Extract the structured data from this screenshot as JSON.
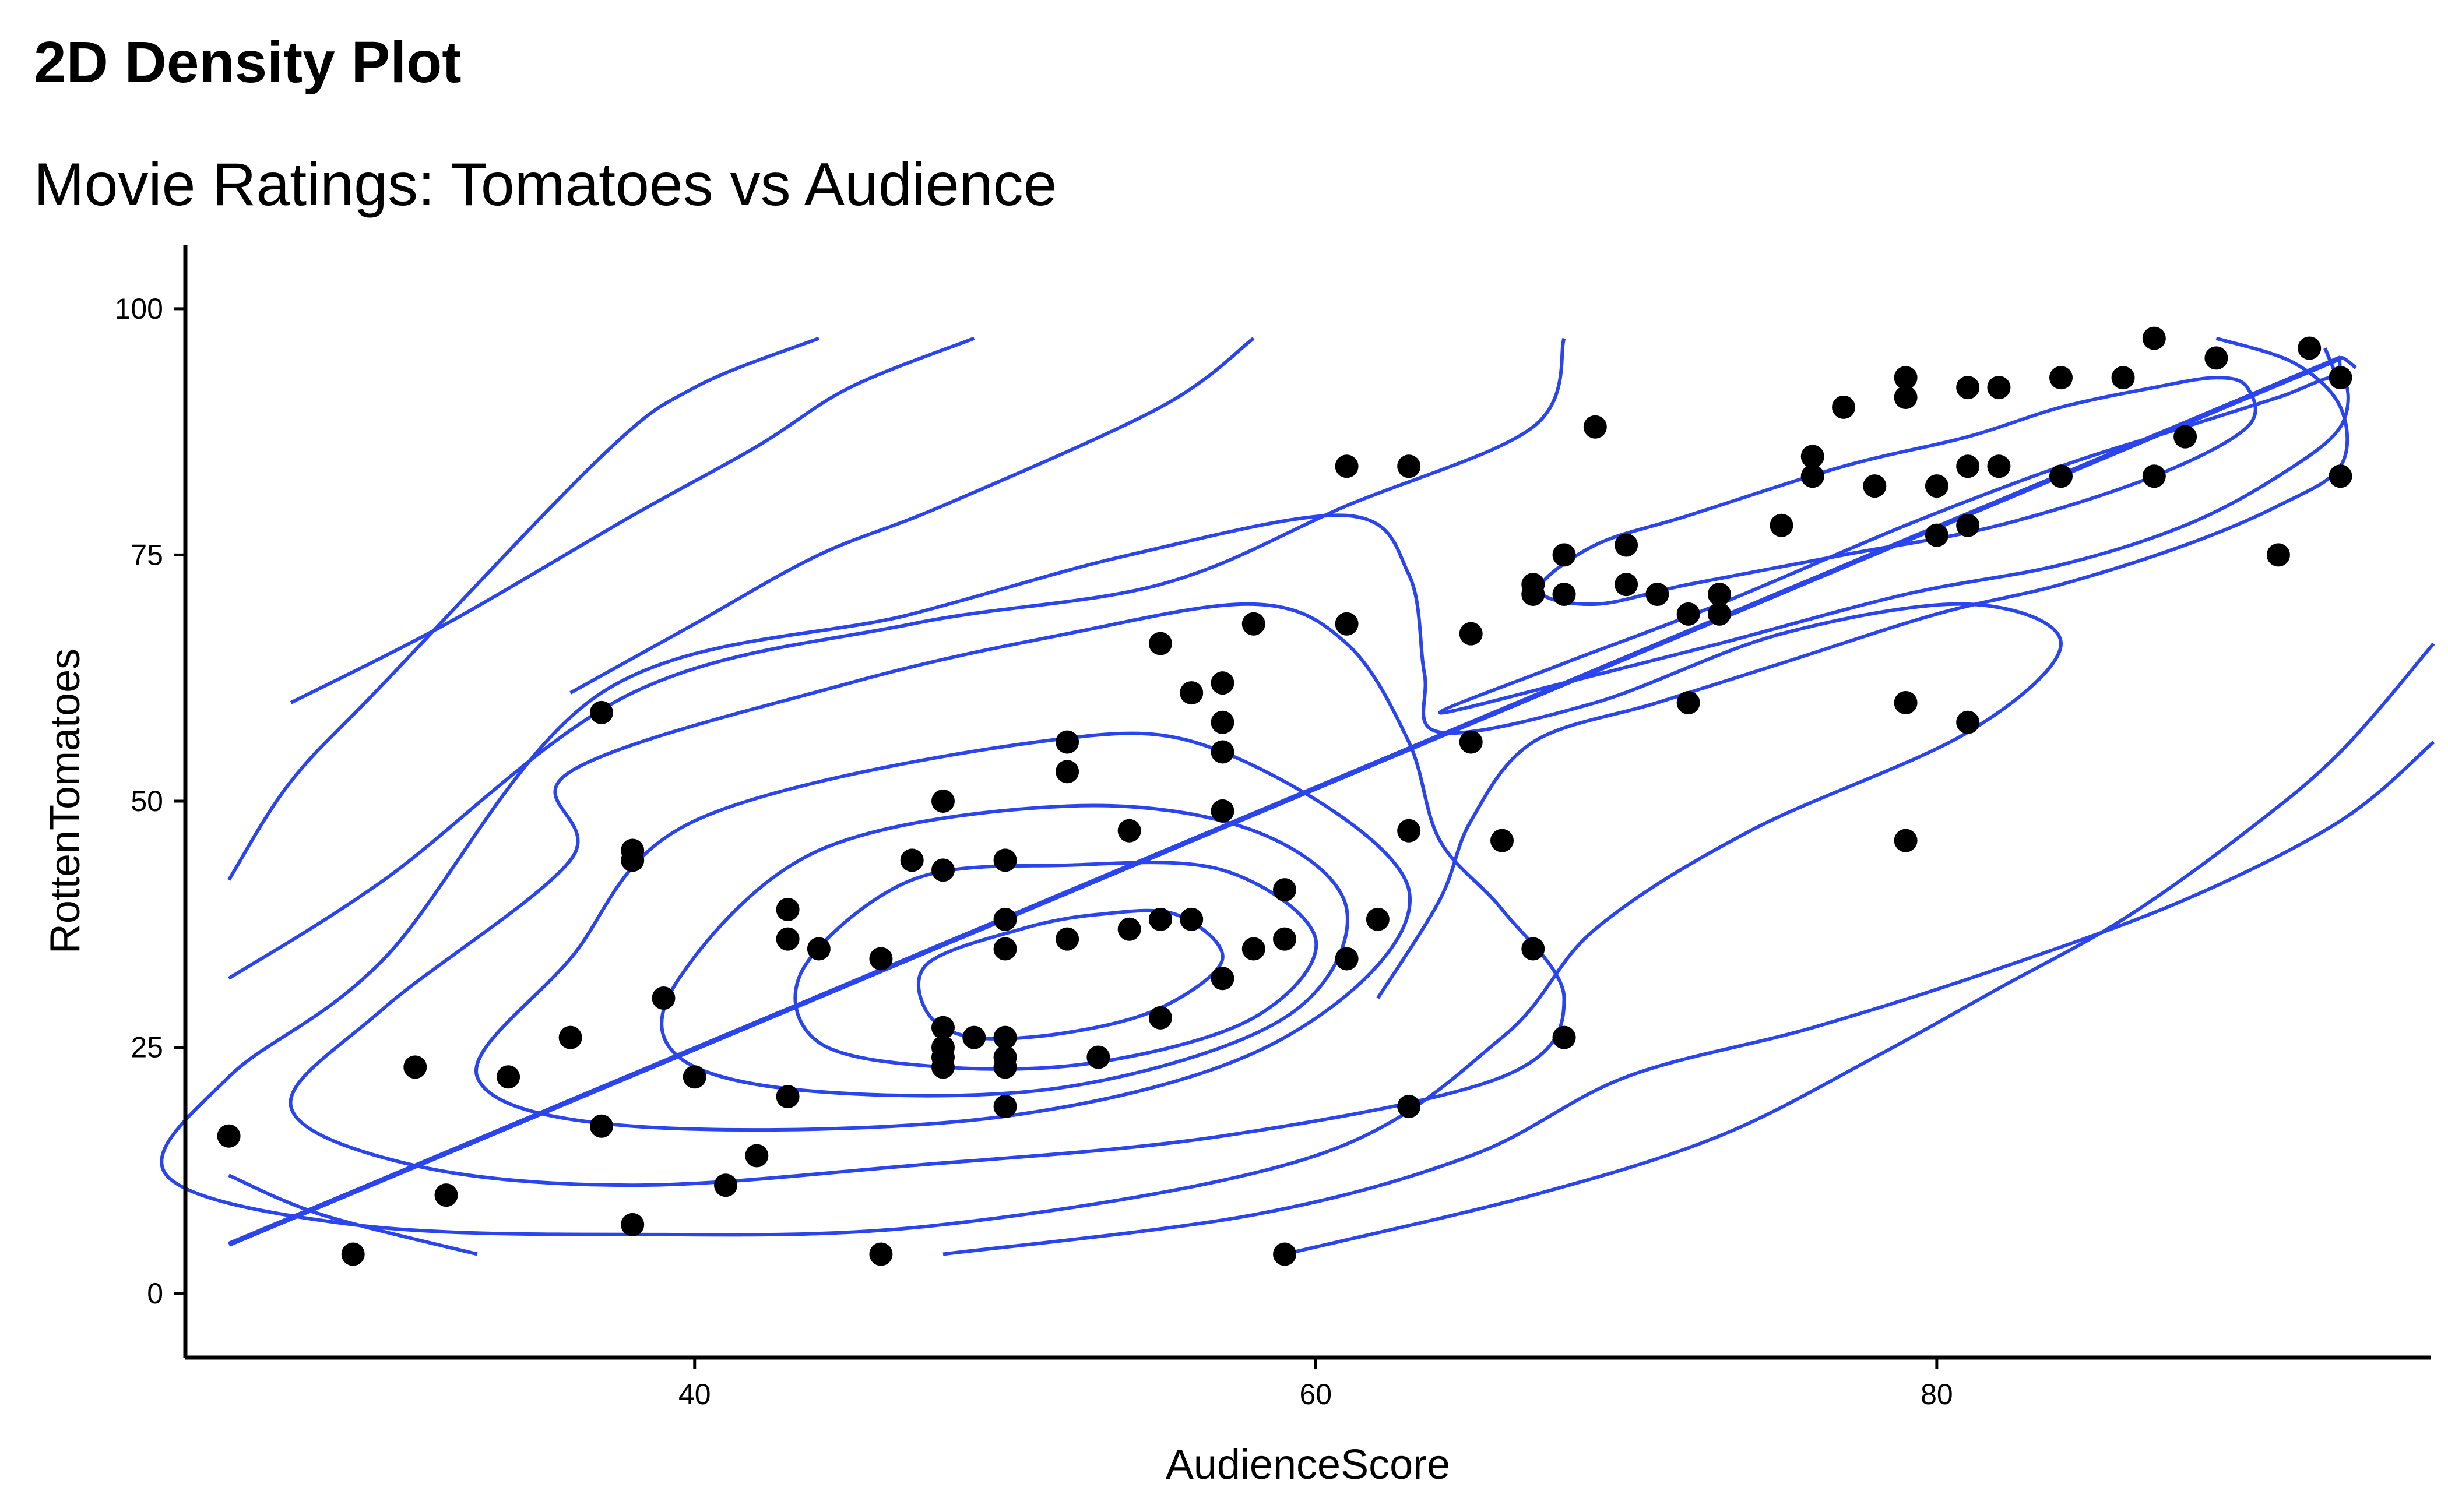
{
  "chart_data": {
    "type": "scatter",
    "title": "2D Density Plot",
    "subtitle": "Movie Ratings: Tomatoes vs Audience",
    "xlabel": "AudienceScore",
    "ylabel": "RottenTomatoes",
    "xlim": [
      23.6,
      95.9
    ],
    "ylim": [
      -6.5,
      106.5
    ],
    "xticks": [
      40,
      60,
      80
    ],
    "yticks": [
      0,
      25,
      50,
      75,
      100
    ],
    "grid": false,
    "legend": "none",
    "colors": {
      "points": "#000000",
      "contours": "#2b45ee",
      "trend": "#2b45ee"
    },
    "points": [
      [
        25,
        16
      ],
      [
        29,
        4
      ],
      [
        31,
        23
      ],
      [
        32,
        10
      ],
      [
        34,
        22
      ],
      [
        36,
        26
      ],
      [
        37,
        17
      ],
      [
        37,
        59
      ],
      [
        38,
        45
      ],
      [
        38,
        44
      ],
      [
        38,
        7
      ],
      [
        39,
        30
      ],
      [
        40,
        22
      ],
      [
        41,
        11
      ],
      [
        42,
        14
      ],
      [
        43,
        39
      ],
      [
        43,
        36
      ],
      [
        43,
        20
      ],
      [
        44,
        35
      ],
      [
        46,
        4
      ],
      [
        46,
        34
      ],
      [
        47,
        44
      ],
      [
        48,
        50
      ],
      [
        48,
        43
      ],
      [
        48,
        27
      ],
      [
        48,
        25
      ],
      [
        48,
        24
      ],
      [
        48,
        23
      ],
      [
        49,
        26
      ],
      [
        50,
        44
      ],
      [
        50,
        38
      ],
      [
        50,
        35
      ],
      [
        50,
        26
      ],
      [
        50,
        24
      ],
      [
        50,
        23
      ],
      [
        50,
        19
      ],
      [
        52,
        56
      ],
      [
        52,
        53
      ],
      [
        52,
        36
      ],
      [
        53,
        24
      ],
      [
        54,
        47
      ],
      [
        54,
        37
      ],
      [
        55,
        66
      ],
      [
        55,
        38
      ],
      [
        55,
        28
      ],
      [
        56,
        61
      ],
      [
        56,
        38
      ],
      [
        57,
        62
      ],
      [
        57,
        58
      ],
      [
        57,
        55
      ],
      [
        57,
        49
      ],
      [
        57,
        32
      ],
      [
        58,
        68
      ],
      [
        58,
        35
      ],
      [
        59,
        41
      ],
      [
        59,
        36
      ],
      [
        59,
        4
      ],
      [
        61,
        84
      ],
      [
        61,
        68
      ],
      [
        61,
        34
      ],
      [
        62,
        38
      ],
      [
        63,
        84
      ],
      [
        63,
        47
      ],
      [
        63,
        19
      ],
      [
        65,
        67
      ],
      [
        65,
        56
      ],
      [
        66,
        46
      ],
      [
        67,
        72
      ],
      [
        67,
        71
      ],
      [
        67,
        35
      ],
      [
        68,
        75
      ],
      [
        68,
        71
      ],
      [
        68,
        26
      ],
      [
        69,
        88
      ],
      [
        70,
        76
      ],
      [
        70,
        72
      ],
      [
        71,
        71
      ],
      [
        72,
        69
      ],
      [
        72,
        60
      ],
      [
        73,
        71
      ],
      [
        73,
        69
      ],
      [
        75,
        78
      ],
      [
        76,
        85
      ],
      [
        76,
        83
      ],
      [
        77,
        90
      ],
      [
        78,
        82
      ],
      [
        79,
        93
      ],
      [
        79,
        91
      ],
      [
        79,
        60
      ],
      [
        79,
        46
      ],
      [
        80,
        82
      ],
      [
        80,
        77
      ],
      [
        81,
        92
      ],
      [
        81,
        84
      ],
      [
        81,
        78
      ],
      [
        81,
        58
      ],
      [
        82,
        92
      ],
      [
        82,
        84
      ],
      [
        84,
        93
      ],
      [
        84,
        83
      ],
      [
        86,
        93
      ],
      [
        87,
        97
      ],
      [
        87,
        83
      ],
      [
        88,
        87
      ],
      [
        89,
        95
      ],
      [
        91,
        75
      ],
      [
        92,
        96
      ],
      [
        93,
        93
      ],
      [
        93,
        83
      ]
    ],
    "trend_line": {
      "x": [
        25,
        93
      ],
      "y": [
        5,
        95
      ]
    },
    "contours": [
      [
        [
          50.5,
          37
        ],
        [
          53,
          38.5
        ],
        [
          55.5,
          38.5
        ],
        [
          57,
          34
        ],
        [
          55,
          29
        ],
        [
          52,
          26.5
        ],
        [
          49,
          26
        ],
        [
          47.5,
          28.5
        ],
        [
          47.5,
          33.5
        ],
        [
          50.5,
          37
        ]
      ],
      [
        [
          47,
          42
        ],
        [
          52,
          43.5
        ],
        [
          57,
          43
        ],
        [
          60,
          36
        ],
        [
          58,
          28
        ],
        [
          53,
          23.5
        ],
        [
          48,
          23
        ],
        [
          44,
          25.5
        ],
        [
          43.5,
          33
        ],
        [
          47,
          42
        ]
      ],
      [
        [
          44,
          45
        ],
        [
          52,
          49.5
        ],
        [
          58,
          47
        ],
        [
          61,
          39
        ],
        [
          59,
          28
        ],
        [
          52,
          21
        ],
        [
          44,
          20.5
        ],
        [
          39.5,
          24
        ],
        [
          39.5,
          32
        ],
        [
          44,
          45
        ]
      ],
      [
        [
          40,
          48
        ],
        [
          51,
          56
        ],
        [
          57,
          55
        ],
        [
          63,
          41
        ],
        [
          59,
          26
        ],
        [
          50,
          18
        ],
        [
          38,
          17
        ],
        [
          33,
          22
        ],
        [
          36,
          34
        ],
        [
          40,
          48
        ]
      ],
      [
        [
          36,
          53
        ],
        [
          45,
          62
        ],
        [
          52,
          67
        ],
        [
          58,
          70
        ],
        [
          61,
          66
        ],
        [
          63,
          56
        ],
        [
          64,
          46
        ],
        [
          66,
          39
        ],
        [
          68,
          30
        ],
        [
          66,
          22
        ],
        [
          57,
          16
        ],
        [
          47,
          13
        ],
        [
          38,
          11
        ],
        [
          31,
          13
        ],
        [
          27,
          19
        ],
        [
          30,
          29
        ],
        [
          36,
          44
        ],
        [
          36,
          53
        ]
      ],
      [
        [
          37,
          61
        ],
        [
          47,
          69
        ],
        [
          54,
          75
        ],
        [
          61,
          79
        ],
        [
          63,
          73
        ],
        [
          63.5,
          63
        ],
        [
          64,
          57
        ],
        [
          69,
          60
        ],
        [
          75,
          67
        ],
        [
          81,
          70
        ],
        [
          84,
          66
        ],
        [
          81,
          57
        ],
        [
          74,
          47
        ],
        [
          69,
          37
        ],
        [
          66,
          26
        ],
        [
          60,
          14
        ],
        [
          48,
          7
        ],
        [
          38,
          6
        ],
        [
          29,
          7
        ],
        [
          23,
          12
        ],
        [
          25,
          22
        ],
        [
          30,
          34
        ],
        [
          37,
          61
        ]
      ],
      [
        [
          25,
          32
        ],
        [
          30,
          42
        ],
        [
          38,
          61
        ],
        [
          47,
          68
        ],
        [
          55,
          72
        ],
        [
          61,
          80
        ],
        [
          67,
          88
        ],
        [
          68,
          97
        ]
      ],
      [
        [
          44,
          97
        ],
        [
          40,
          92
        ],
        [
          37,
          85
        ],
        [
          30,
          62
        ],
        [
          27,
          52
        ],
        [
          25,
          42
        ]
      ],
      [
        [
          49,
          97
        ],
        [
          45,
          92
        ],
        [
          42,
          86
        ],
        [
          38,
          79
        ],
        [
          32,
          68
        ],
        [
          27,
          60
        ]
      ],
      [
        [
          58,
          97
        ],
        [
          55,
          90
        ],
        [
          48,
          80
        ],
        [
          44,
          75
        ],
        [
          40,
          68
        ],
        [
          36,
          61
        ]
      ],
      [
        [
          33,
          4
        ],
        [
          28,
          8
        ],
        [
          25,
          12
        ]
      ],
      [
        [
          48,
          4
        ],
        [
          58,
          8
        ],
        [
          65,
          14
        ],
        [
          70,
          22
        ],
        [
          76,
          27
        ],
        [
          82,
          33
        ],
        [
          88,
          40
        ],
        [
          93,
          48
        ],
        [
          96,
          56
        ]
      ],
      [
        [
          59,
          4
        ],
        [
          67,
          10
        ],
        [
          73,
          16
        ],
        [
          78,
          24
        ],
        [
          82,
          31
        ],
        [
          86,
          38
        ],
        [
          90,
          47
        ],
        [
          93,
          55
        ],
        [
          96,
          66
        ]
      ],
      [
        [
          67.2,
          71.5
        ],
        [
          69,
          76
        ],
        [
          72,
          79
        ],
        [
          77,
          84
        ],
        [
          81,
          87
        ],
        [
          84,
          90
        ],
        [
          87,
          92
        ],
        [
          89,
          93
        ],
        [
          90,
          92
        ],
        [
          90,
          88
        ],
        [
          87,
          83
        ],
        [
          82,
          78
        ],
        [
          77,
          75
        ],
        [
          72,
          72
        ],
        [
          69,
          70
        ],
        [
          67.2,
          71.5
        ]
      ],
      [
        [
          64,
          59
        ],
        [
          68,
          64
        ],
        [
          73,
          70
        ],
        [
          79,
          78
        ],
        [
          84,
          84
        ],
        [
          88,
          88
        ],
        [
          91,
          91
        ],
        [
          93,
          93
        ],
        [
          93,
          88
        ],
        [
          91,
          83
        ],
        [
          88,
          78
        ],
        [
          84,
          74
        ],
        [
          79,
          71
        ],
        [
          73,
          66
        ],
        [
          68,
          62
        ],
        [
          64,
          59
        ]
      ],
      [
        [
          89,
          97
        ],
        [
          91.5,
          94.5
        ],
        [
          93,
          90
        ],
        [
          93,
          84
        ],
        [
          91,
          80
        ],
        [
          88,
          76
        ],
        [
          84,
          72
        ],
        [
          80,
          69
        ],
        [
          75,
          64
        ],
        [
          71,
          60
        ],
        [
          67,
          56
        ],
        [
          65,
          48
        ],
        [
          64,
          40
        ],
        [
          62,
          30
        ]
      ],
      [
        [
          92.5,
          96
        ],
        [
          93,
          92.5
        ],
        [
          93,
          95
        ],
        [
          93.5,
          94
        ]
      ]
    ]
  }
}
